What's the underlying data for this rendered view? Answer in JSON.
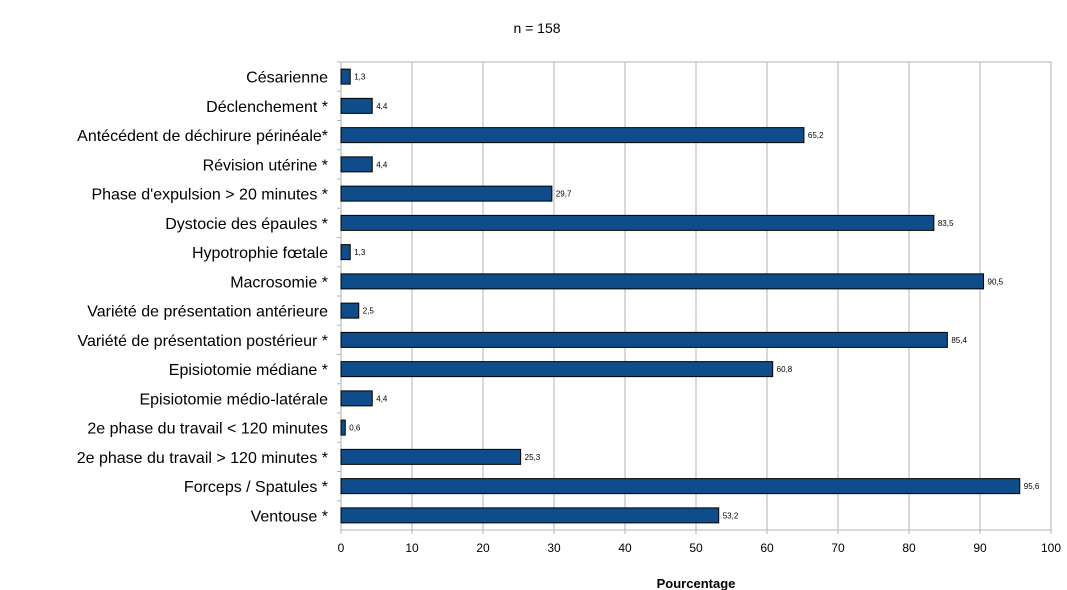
{
  "chart_data": {
    "type": "bar",
    "orientation": "horizontal",
    "title": "n = 158",
    "xlabel": "Pourcentage",
    "ylabel": "",
    "xlim": [
      0,
      100
    ],
    "xticks": [
      0,
      10,
      20,
      30,
      40,
      50,
      60,
      70,
      80,
      90,
      100
    ],
    "grid": true,
    "bar_color": "#0f4c8a",
    "categories": [
      "Césarienne",
      "Déclenchement *",
      "Antécédent de déchirure périnéale*",
      "Révision utérine *",
      "Phase d'expulsion > 20 minutes *",
      "Dystocie des épaules *",
      "Hypotrophie fœtale",
      "Macrosomie *",
      "Variété de présentation antérieure",
      "Variété de présentation postérieur *",
      "Episiotomie médiane *",
      "Episiotomie médio-latérale",
      "2e phase du travail < 120 minutes",
      "2e phase du travail > 120 minutes *",
      "Forceps / Spatules *",
      "Ventouse *"
    ],
    "values": [
      1.3,
      4.4,
      65.2,
      4.4,
      29.7,
      83.5,
      1.3,
      90.5,
      2.5,
      85.4,
      60.8,
      4.4,
      0.6,
      25.3,
      95.6,
      53.2
    ],
    "data_labels": [
      "1,3",
      "4,4",
      "65,2",
      "4,4",
      "29,7",
      "83,5",
      "1,3",
      "90,5",
      "2,5",
      "85,4",
      "60,8",
      "4,4",
      "0,6",
      "25,3",
      "95,6",
      "53,2"
    ]
  }
}
